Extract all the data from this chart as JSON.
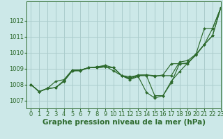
{
  "background_color": "#cce8e8",
  "grid_color": "#aacccc",
  "line_color": "#2d6a2d",
  "xlabel": "Graphe pression niveau de la mer (hPa)",
  "xlabel_fontsize": 7.5,
  "tick_fontsize": 6,
  "xlim": [
    -0.5,
    23
  ],
  "ylim": [
    1006.5,
    1013.2
  ],
  "yticks": [
    1007,
    1008,
    1009,
    1010,
    1011,
    1012
  ],
  "xticks": [
    0,
    1,
    2,
    3,
    4,
    5,
    6,
    7,
    8,
    9,
    10,
    11,
    12,
    13,
    14,
    15,
    16,
    17,
    18,
    19,
    20,
    21,
    22,
    23
  ],
  "series": [
    [
      1008.0,
      1007.55,
      1007.75,
      1007.8,
      1008.2,
      1008.85,
      1008.85,
      1009.05,
      1009.05,
      1009.1,
      1009.05,
      1008.55,
      1008.5,
      1008.55,
      1008.55,
      1007.3,
      1007.3,
      1008.2,
      1008.8,
      1009.35,
      1009.85,
      1010.5,
      1011.5,
      1012.8
    ],
    [
      1008.0,
      1007.55,
      1007.75,
      1007.8,
      1008.2,
      1008.85,
      1008.9,
      1009.05,
      1009.05,
      1009.1,
      1009.05,
      1008.55,
      1008.3,
      1008.5,
      1007.5,
      1007.15,
      1007.3,
      1008.1,
      1009.3,
      1009.3,
      1009.9,
      1011.5,
      1011.5,
      1012.8
    ],
    [
      1008.0,
      1007.55,
      1007.75,
      1007.8,
      1008.25,
      1008.9,
      1008.9,
      1009.05,
      1009.1,
      1009.15,
      1008.85,
      1008.55,
      1008.4,
      1008.6,
      1008.6,
      1008.5,
      1008.6,
      1009.3,
      1009.3,
      1009.35,
      1009.85,
      1010.5,
      1011.05,
      1012.8
    ],
    [
      1008.0,
      1007.55,
      1007.75,
      1008.2,
      1008.3,
      1008.9,
      1008.9,
      1009.05,
      1009.1,
      1009.2,
      1009.05,
      1008.55,
      1008.35,
      1008.55,
      1008.6,
      1008.55,
      1008.55,
      1008.55,
      1009.4,
      1009.5,
      1009.9,
      1010.5,
      1011.05,
      1012.8
    ]
  ]
}
